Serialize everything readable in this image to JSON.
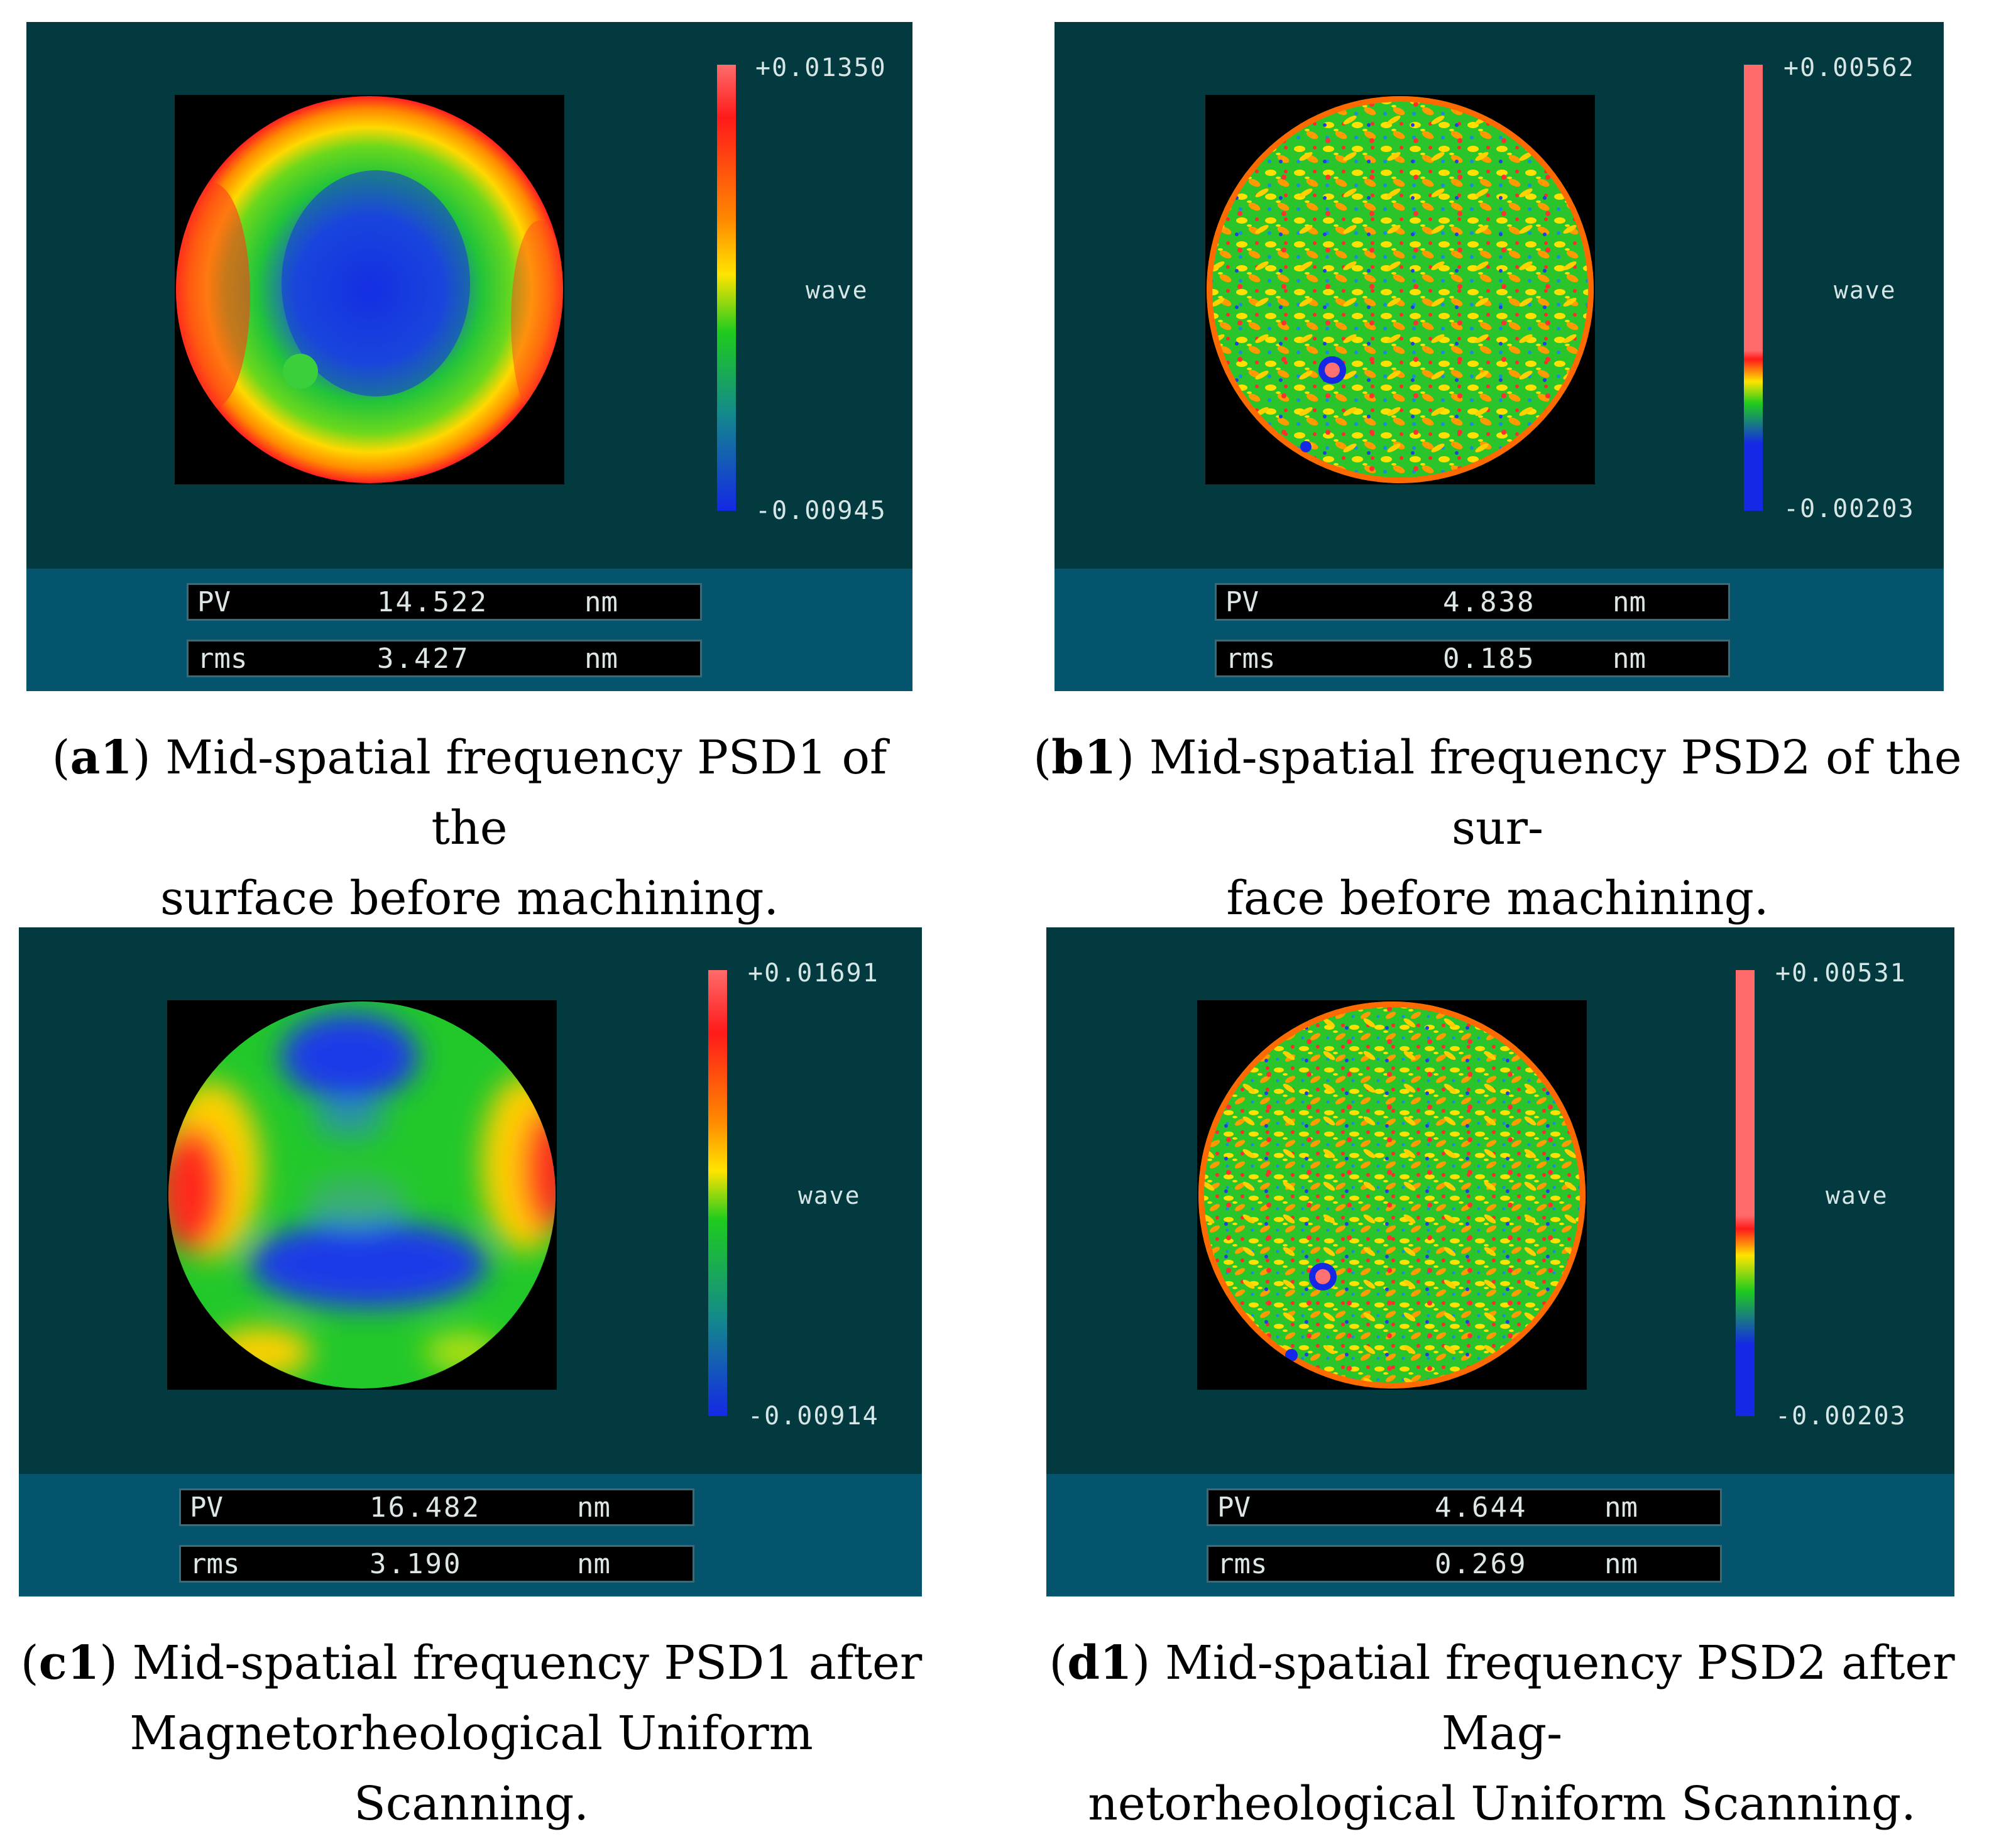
{
  "panels": [
    {
      "id": "a1",
      "colorbar": {
        "max": "+0.01350",
        "min": "-0.00945",
        "label": "wave"
      },
      "pv": {
        "label": "PV",
        "value": "14.522",
        "unit": "nm"
      },
      "rms": {
        "label": "rms",
        "value": "3.427",
        "unit": "nm"
      },
      "caption_id": "a1",
      "caption_line1": "Mid-spatial frequency PSD1 of the",
      "caption_line2": "surface before machining."
    },
    {
      "id": "b1",
      "colorbar": {
        "max": "+0.00562",
        "min": "-0.00203",
        "label": "wave"
      },
      "pv": {
        "label": "PV",
        "value": "4.838",
        "unit": "nm"
      },
      "rms": {
        "label": "rms",
        "value": "0.185",
        "unit": "nm"
      },
      "caption_id": "b1",
      "caption_line1": "Mid-spatial frequency PSD2 of the sur-",
      "caption_line2": "face before machining."
    },
    {
      "id": "c1",
      "colorbar": {
        "max": "+0.01691",
        "min": "-0.00914",
        "label": "wave"
      },
      "pv": {
        "label": "PV",
        "value": "16.482",
        "unit": "nm"
      },
      "rms": {
        "label": "rms",
        "value": "3.190",
        "unit": "nm"
      },
      "caption_id": "c1",
      "caption_line1": "Mid-spatial frequency PSD1 after",
      "caption_line2": "Magnetorheological Uniform Scanning."
    },
    {
      "id": "d1",
      "colorbar": {
        "max": "+0.00531",
        "min": "-0.00203",
        "label": "wave"
      },
      "pv": {
        "label": "PV",
        "value": "4.644",
        "unit": "nm"
      },
      "rms": {
        "label": "rms",
        "value": "0.269",
        "unit": "nm"
      },
      "caption_id": "d1",
      "caption_line1": "Mid-spatial frequency PSD2 after Mag-",
      "caption_line2": "netorheological Uniform Scanning."
    }
  ],
  "colors": {
    "screen_bg": "#033a3f",
    "footer_bg": "#03546c",
    "map_red": "#ff2a2a",
    "map_yellow": "#ffe400",
    "map_green": "#1ecb1e",
    "map_blue": "#1428e6"
  }
}
